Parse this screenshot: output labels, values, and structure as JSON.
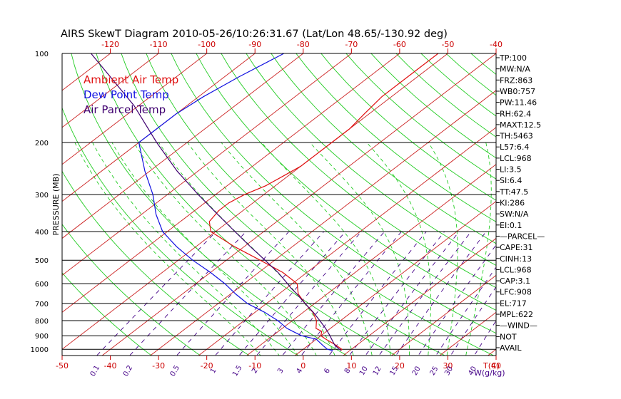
{
  "chart_data": {
    "type": "line",
    "title": "AIRS SkewT Diagram 2010-05-26/10:26:31.67 (Lat/Lon 48.65/-130.92 deg)",
    "ylabel": "PRESSURE (MB)",
    "bottom_axis_unit": "T(C)",
    "mixing_ratio_unit": "W(g/kg)",
    "ylim": [
      1050,
      100
    ],
    "xlim_bottom": [
      -50,
      40
    ],
    "pressure_ticks": [
      100,
      200,
      300,
      400,
      500,
      600,
      700,
      800,
      900,
      1000
    ],
    "bottom_temp_ticks": [
      -50,
      -40,
      -30,
      -20,
      -10,
      0,
      10,
      20,
      30,
      40
    ],
    "top_temp_ticks": [
      -120,
      -110,
      -100,
      -90,
      -80,
      -70,
      -60,
      -50,
      -40
    ],
    "mixing_ratio_labels": [
      "0.1",
      "0.2",
      "0.5",
      "1",
      "1.5",
      "2",
      "3",
      "4",
      "6",
      "8",
      "10",
      "12",
      "15",
      "20",
      "25",
      "30",
      "40"
    ],
    "legend": [
      "Ambient Air Temp",
      "Dew Point Temp",
      "Air Parcel Temp"
    ],
    "legend_position": "top-left",
    "colors": {
      "ambient": "#e01010",
      "dewpoint": "#1010e0",
      "parcel": "#400070",
      "isotherm": "#cc2222",
      "dry_adiabat": "#22cc22",
      "moist_adiabat": "#22cc22",
      "mixing_ratio": "#440088",
      "isobar": "#000000",
      "axis_red": "#cc0000"
    },
    "series": [
      {
        "name": "Ambient Air Temp",
        "pressure": [
          1010,
          1000,
          960,
          925,
          900,
          870,
          850,
          800,
          750,
          700,
          650,
          600,
          550,
          500,
          450,
          400,
          370,
          340,
          320,
          300,
          280,
          260,
          240,
          220,
          200,
          180,
          160,
          140,
          120,
          100
        ],
        "temperature": [
          8.2,
          8,
          5,
          2,
          0,
          -1,
          -3,
          -5,
          -8,
          -12,
          -16,
          -19,
          -25,
          -33,
          -42,
          -51,
          -54,
          -55,
          -55,
          -54,
          -52,
          -51,
          -50,
          -50,
          -50,
          -50,
          -51,
          -52,
          -52,
          -52
        ]
      },
      {
        "name": "Dew Point Temp",
        "pressure": [
          1010,
          1000,
          970,
          925,
          900,
          870,
          850,
          800,
          750,
          700,
          650,
          600,
          550,
          500,
          450,
          400,
          350,
          300,
          250,
          200,
          180,
          160,
          140,
          120,
          100
        ],
        "temperature": [
          6.5,
          5,
          3,
          0,
          -4,
          -7,
          -9,
          -13,
          -18,
          -24,
          -29,
          -34,
          -40,
          -47,
          -54,
          -61,
          -67,
          -73,
          -81,
          -90,
          -90,
          -90,
          -89,
          -87,
          -84
        ]
      },
      {
        "name": "Air Parcel Temp",
        "pressure": [
          1010,
          1000,
          968,
          950,
          908,
          900,
          850,
          800,
          750,
          717,
          700,
          650,
          622,
          600,
          550,
          500,
          450,
          400,
          350,
          300,
          250,
          200,
          150,
          100
        ],
        "temperature": [
          8.2,
          7.5,
          5.4,
          4.5,
          2.3,
          1.9,
          -1,
          -4.3,
          -7.9,
          -10.6,
          -12,
          -16.3,
          -19,
          -21,
          -26,
          -32,
          -38.7,
          -46,
          -54.2,
          -63.6,
          -74.3,
          -86.3,
          -101,
          -124
        ]
      }
    ],
    "indices": [
      "TP:100",
      "MW:N/A",
      "FRZ:863",
      "WB0:757",
      "PW:11.46",
      "RH:62.4",
      "MAXT:12.5",
      "TH:5463",
      "L57:6.4",
      "LCL:968",
      "LI:3.5",
      "SI:6.4",
      "TT:47.5",
      "KI:286",
      "SW:N/A",
      "EI:0.1",
      "—PARCEL—",
      "CAPE:31",
      "CINH:13",
      "LCL:968",
      "CAP:3.1",
      "LFC:908",
      "EL:717",
      "MPL:622",
      "—WIND—",
      "NOT",
      "AVAIL"
    ]
  }
}
